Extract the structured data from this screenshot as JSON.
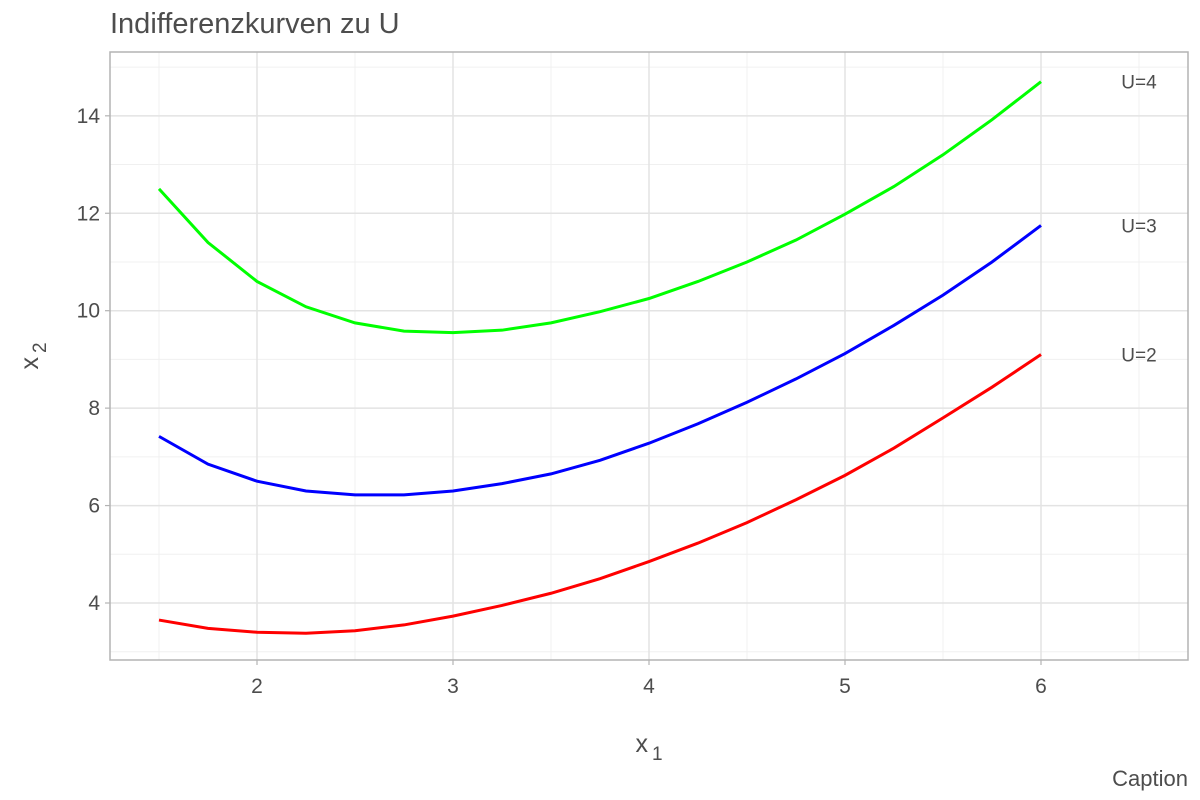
{
  "chart_data": {
    "type": "line",
    "title": "Indifferenzkurven zu U",
    "caption": "Caption",
    "x_label": {
      "base": "x",
      "sub": "1"
    },
    "y_label": {
      "base": "x",
      "sub": "2"
    },
    "x": [
      1.5,
      1.75,
      2,
      2.25,
      2.5,
      2.75,
      3,
      3.25,
      3.5,
      3.75,
      4,
      4.25,
      4.5,
      4.75,
      5,
      5.25,
      5.5,
      5.75,
      6
    ],
    "series": [
      {
        "name": "U=2",
        "color": "#ff0000",
        "values": [
          3.65,
          3.48,
          3.4,
          3.38,
          3.43,
          3.55,
          3.73,
          3.95,
          4.2,
          4.5,
          4.85,
          5.23,
          5.65,
          6.12,
          6.62,
          7.18,
          7.8,
          8.43,
          9.1
        ]
      },
      {
        "name": "U=3",
        "color": "#0000ff",
        "values": [
          7.42,
          6.85,
          6.5,
          6.3,
          6.22,
          6.22,
          6.3,
          6.45,
          6.65,
          6.93,
          7.28,
          7.68,
          8.12,
          8.6,
          9.12,
          9.7,
          10.32,
          11.0,
          11.75
        ]
      },
      {
        "name": "U=4",
        "color": "#00ff00",
        "values": [
          12.5,
          11.4,
          10.6,
          10.08,
          9.75,
          9.58,
          9.55,
          9.6,
          9.75,
          9.98,
          10.25,
          10.6,
          11.0,
          11.45,
          11.98,
          12.55,
          13.2,
          13.92,
          14.7
        ]
      }
    ],
    "label_x": 6.5,
    "xlim": [
      1.25,
      6.75
    ],
    "xticks": [
      2,
      3,
      4,
      5,
      6
    ],
    "x_minor_grid": [
      1.5,
      2.5,
      3.5,
      4.5,
      5.5,
      6.5
    ],
    "ylim": [
      2.83,
      15.31
    ],
    "yticks": [
      4,
      6,
      8,
      10,
      12,
      14
    ],
    "y_minor_grid": [
      3,
      5,
      7,
      9,
      11,
      13,
      15
    ],
    "grid": true
  }
}
